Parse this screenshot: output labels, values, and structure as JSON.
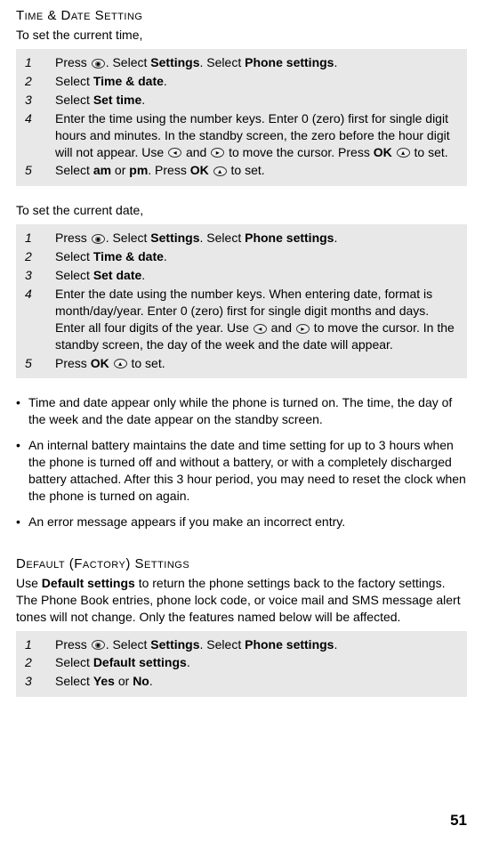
{
  "section1": {
    "title": "Time & Date Setting",
    "intro": "To set the current time,",
    "steps": [
      {
        "n": "1",
        "pre": "Press ",
        "icon": "nav",
        "mid": ". Select ",
        "b1": " Settings",
        "mid2": ". Select ",
        "b2": " Phone settings",
        "post": "."
      },
      {
        "n": "2",
        "pre": "Select ",
        "b1": " Time & date",
        "post": "."
      },
      {
        "n": "3",
        "pre": "Select ",
        "b1": " Set time",
        "post": "."
      },
      {
        "n": "4",
        "text": "Enter the time using the number keys. Enter 0 (zero) first for single digit hours and minutes. In the standby screen, the zero before the hour digit will not appear. Use ",
        "icon1": "left",
        "mid": " and ",
        "icon2": "right",
        "mid2": " to move the cursor. Press ",
        "b1": "OK",
        "icon3": "up",
        "post": " to set."
      },
      {
        "n": "5",
        "pre": "Select ",
        "b1": " am",
        "mid": " or ",
        "b2": " pm",
        "mid2": ". Press ",
        "b3": "OK",
        "icon": "up",
        "post": " to set."
      }
    ]
  },
  "section2": {
    "intro": "To set the current date,",
    "steps": [
      {
        "n": "1",
        "pre": "Press ",
        "icon": "nav",
        "mid": ". Select ",
        "b1": " Settings",
        "mid2": ". Select ",
        "b2": " Phone settings",
        "post": "."
      },
      {
        "n": "2",
        "pre": "Select ",
        "b1": " Time & date",
        "post": "."
      },
      {
        "n": "3",
        "pre": "Select ",
        "b1": " Set date",
        "post": "."
      },
      {
        "n": "4",
        "text": "Enter the date using the number keys. When entering date, format is month/day/year. Enter 0 (zero) first for single digit months and days. Enter all four digits of the year. Use ",
        "icon1": "left",
        "mid": " and ",
        "icon2": "right",
        "mid2": " to move the cursor. In the standby screen, the day of the week and the date will appear."
      },
      {
        "n": "5",
        "pre": "Press ",
        "b1": "OK",
        "icon": "up",
        "post": " to set."
      }
    ]
  },
  "bullets": [
    "Time and date appear only while the phone is turned on. The time, the day of the week and the date appear on the standby screen.",
    "An internal battery maintains the date and time setting for up to 3 hours when the phone is turned off and without a battery, or with a completely discharged battery attached.  After this 3 hour period, you may need to reset the clock when the phone is turned on again.",
    "An error message appears if you make an incorrect entry."
  ],
  "section3": {
    "title": "Default (Factory) Settings",
    "para_pre": "Use ",
    "para_b": " Default settings",
    "para_post": " to return the phone settings back to the factory settings. The Phone Book entries, phone lock code, or voice mail and SMS message alert tones will not change. Only the features named below will be affected.",
    "steps": [
      {
        "n": "1",
        "pre": "Press ",
        "icon": "nav",
        "mid": ". Select ",
        "b1": " Settings",
        "mid2": ". Select ",
        "b2": " Phone settings",
        "post": "."
      },
      {
        "n": "2",
        "pre": "Select ",
        "b1": " Default settings",
        "post": "."
      },
      {
        "n": "3",
        "pre": "Select ",
        "b1": " Yes",
        "mid": " or ",
        "b2": " No",
        "post": "."
      }
    ]
  },
  "pageNum": "51"
}
